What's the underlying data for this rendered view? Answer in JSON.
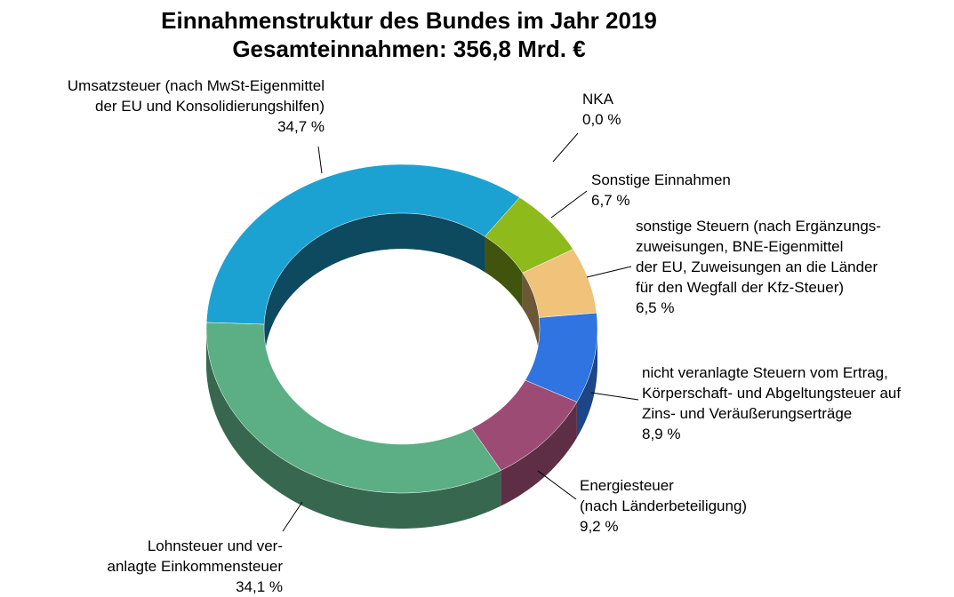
{
  "chart_data": {
    "type": "donut",
    "title": "Einnahmenstruktur des Bundes im Jahr 2019",
    "subtitle": "Gesamteinnahmen: 356,8 Mrd. €",
    "categories": [
      "NKA",
      "Sonstige Einnahmen",
      "sonstige Steuern (nach Ergänzungs-\nzuweisungen, BNE-Eigenmittel\nder EU, Zuweisungen an die Länder\nfür den Wegfall der Kfz-Steuer)",
      "nicht veranlagte Steuern vom Ertrag,\nKörperschaft- und Abgeltungsteuer auf\nZins- und Veräußerungserträge",
      "Energiesteuer\n(nach Länderbeteiligung)",
      "Lohnsteuer und ver-\nanlagte Einkommensteuer",
      "Umsatzsteuer (nach MwSt-Eigenmittel\nder EU und Konsolidierungshilfen)"
    ],
    "values": [
      0.0,
      6.7,
      6.5,
      8.9,
      9.2,
      34.1,
      34.7
    ],
    "value_labels": [
      "0,0 %",
      "6,7 %",
      "6,5 %",
      "8,9 %",
      "9,2 %",
      "34,1 %",
      "34,7 %"
    ],
    "colors": [
      "#8b3c3c",
      "#8fba1c",
      "#f0c27a",
      "#2f74e0",
      "#9c4c74",
      "#5cae84",
      "#1ca2d2"
    ]
  }
}
